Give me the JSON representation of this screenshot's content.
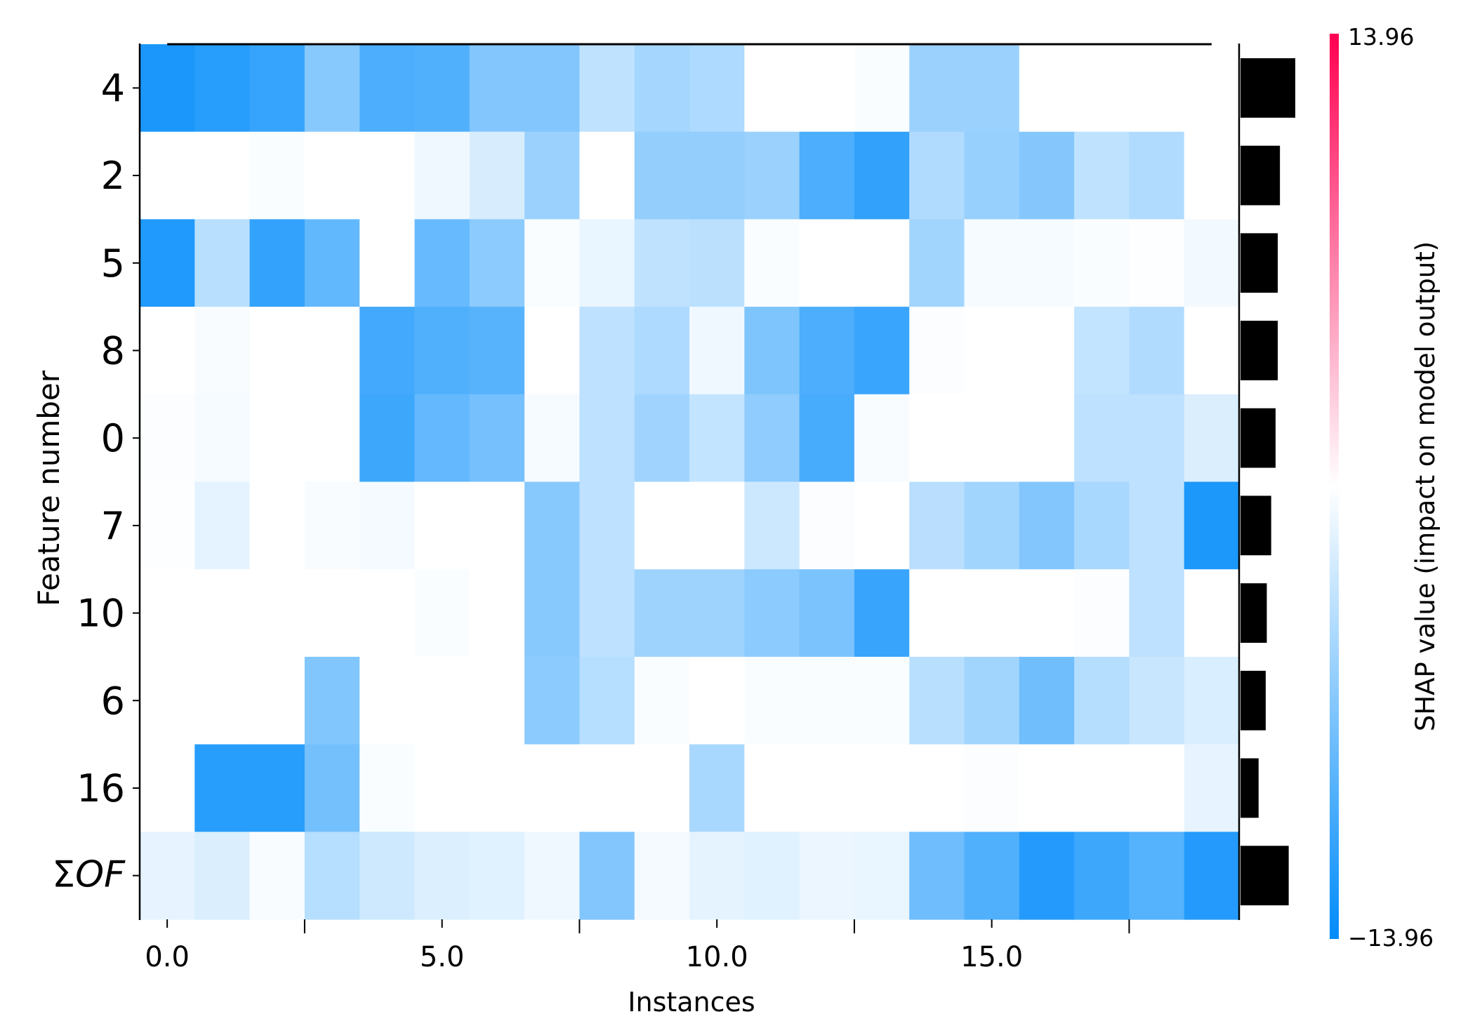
{
  "chart_data": {
    "type": "heatmap",
    "xlabel": "Instances",
    "ylabel": "Feature number",
    "colorbar_label": "SHAP value (impact on model output)",
    "colorbar_max_label": "13.96",
    "colorbar_min_label": "−13.96",
    "vmin": -13.96,
    "vmax": 13.96,
    "x_range": [
      -0.5,
      19.5
    ],
    "x_ticks": [
      0,
      5,
      10,
      15
    ],
    "x_tick_labels": [
      "0.0",
      "5.0",
      "10.0",
      "15.0"
    ],
    "x_minor_ticks": [
      2.5,
      7.5,
      12.5,
      17.5
    ],
    "colors": {
      "negative": "#008bfb",
      "zero": "#ffffff",
      "positive": "#ff0052",
      "importance_bar": "#000000"
    },
    "features": [
      "4",
      "2",
      "5",
      "8",
      "0",
      "7",
      "10",
      "6",
      "16",
      "ΣOF"
    ],
    "values": [
      [
        -12.5,
        -11.8,
        -11.0,
        -6.5,
        -9.8,
        -9.5,
        -6.8,
        -6.8,
        -3.5,
        -4.9,
        -4.5,
        0,
        0,
        -0.3,
        -5.5,
        -5.5,
        0,
        0,
        0,
        0
      ],
      [
        0,
        0,
        -0.3,
        0,
        0,
        -0.9,
        -2.2,
        -5.5,
        0,
        -5.9,
        -5.9,
        -5.5,
        -9.8,
        -11.3,
        -4.3,
        -5.7,
        -6.7,
        -3.5,
        -4.3,
        0
      ],
      [
        -12.2,
        -3.9,
        -11.2,
        -8.6,
        0,
        -8.3,
        -6.3,
        -0.3,
        -1.2,
        -3.5,
        -3.7,
        -0.3,
        0,
        0,
        -5.1,
        -0.5,
        -0.5,
        -0.3,
        -0.1,
        -0.7
      ],
      [
        0,
        -0.4,
        0,
        0,
        -10.3,
        -9.5,
        -9.2,
        0,
        -3.6,
        -4.5,
        -0.8,
        -7.0,
        -9.8,
        -10.8,
        -0.2,
        0,
        0,
        -3.3,
        -4.3,
        0
      ],
      [
        -0.2,
        -0.5,
        0,
        0,
        -10.6,
        -8.5,
        -7.5,
        -0.5,
        -3.6,
        -5.2,
        -3.3,
        -6.1,
        -10.0,
        -0.4,
        0,
        0,
        0,
        -3.6,
        -3.6,
        -2.0
      ],
      [
        -0.1,
        -1.5,
        0,
        -0.4,
        -0.6,
        0,
        0,
        -6.5,
        -3.6,
        0,
        0,
        -2.8,
        -0.2,
        0,
        -3.8,
        -5.1,
        -6.8,
        -4.7,
        -3.6,
        -12.4
      ],
      [
        0,
        0,
        0,
        0,
        0,
        -0.3,
        0,
        -6.5,
        -3.6,
        -5.3,
        -5.3,
        -6.3,
        -7.2,
        -10.9,
        0,
        0,
        0,
        -0.2,
        -3.6,
        0
      ],
      [
        0,
        0,
        0,
        -6.9,
        0,
        0,
        0,
        -6.3,
        -4.0,
        -0.3,
        0,
        -0.3,
        -0.3,
        -0.3,
        -3.9,
        -5.1,
        -7.8,
        -4.1,
        -3.0,
        -2.1
      ],
      [
        0,
        -11.8,
        -11.8,
        -7.6,
        -0.3,
        0,
        0,
        0,
        0,
        0,
        -4.7,
        0,
        0,
        0,
        0,
        -0.2,
        0,
        0,
        0,
        -1.3
      ],
      [
        -1.3,
        -2.0,
        -0.4,
        -4.0,
        -2.7,
        -1.9,
        -1.7,
        -0.8,
        -6.8,
        -0.6,
        -1.4,
        -1.7,
        -1.1,
        -1.2,
        -7.9,
        -9.5,
        -12.0,
        -10.6,
        -9.3,
        -12.0
      ]
    ],
    "mean_abs_importance": [
      1.0,
      0.72,
      0.68,
      0.68,
      0.64,
      0.56,
      0.48,
      0.46,
      0.33,
      0.88
    ]
  }
}
